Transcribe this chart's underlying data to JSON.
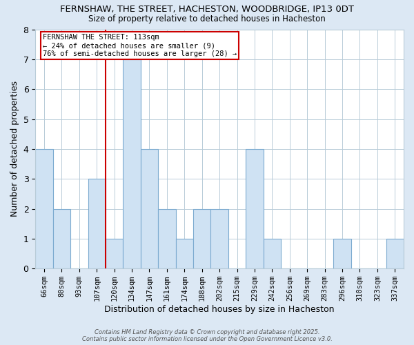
{
  "title": "FERNSHAW, THE STREET, HACHESTON, WOODBRIDGE, IP13 0DT",
  "subtitle": "Size of property relative to detached houses in Hacheston",
  "xlabel": "Distribution of detached houses by size in Hacheston",
  "ylabel": "Number of detached properties",
  "bar_labels": [
    "66sqm",
    "80sqm",
    "93sqm",
    "107sqm",
    "120sqm",
    "134sqm",
    "147sqm",
    "161sqm",
    "174sqm",
    "188sqm",
    "202sqm",
    "215sqm",
    "229sqm",
    "242sqm",
    "256sqm",
    "269sqm",
    "283sqm",
    "296sqm",
    "310sqm",
    "323sqm",
    "337sqm"
  ],
  "bar_values": [
    4,
    2,
    0,
    3,
    1,
    7,
    4,
    2,
    1,
    2,
    2,
    0,
    4,
    1,
    0,
    0,
    0,
    1,
    0,
    0,
    1
  ],
  "bar_color": "#cfe2f3",
  "bar_edge_color": "#7baacf",
  "ylim": [
    0,
    8
  ],
  "yticks": [
    0,
    1,
    2,
    3,
    4,
    5,
    6,
    7,
    8
  ],
  "red_line_x": 3.5,
  "annotation_title": "FERNSHAW THE STREET: 113sqm",
  "annotation_line1": "← 24% of detached houses are smaller (9)",
  "annotation_line2": "76% of semi-detached houses are larger (28) →",
  "annotation_box_color": "#ffffff",
  "annotation_box_edge": "#cc0000",
  "red_line_color": "#cc0000",
  "grid_color": "#b8ccd8",
  "plot_bg_color": "#ffffff",
  "fig_bg_color": "#dce8f4",
  "footer1": "Contains HM Land Registry data © Crown copyright and database right 2025.",
  "footer2": "Contains public sector information licensed under the Open Government Licence v3.0."
}
